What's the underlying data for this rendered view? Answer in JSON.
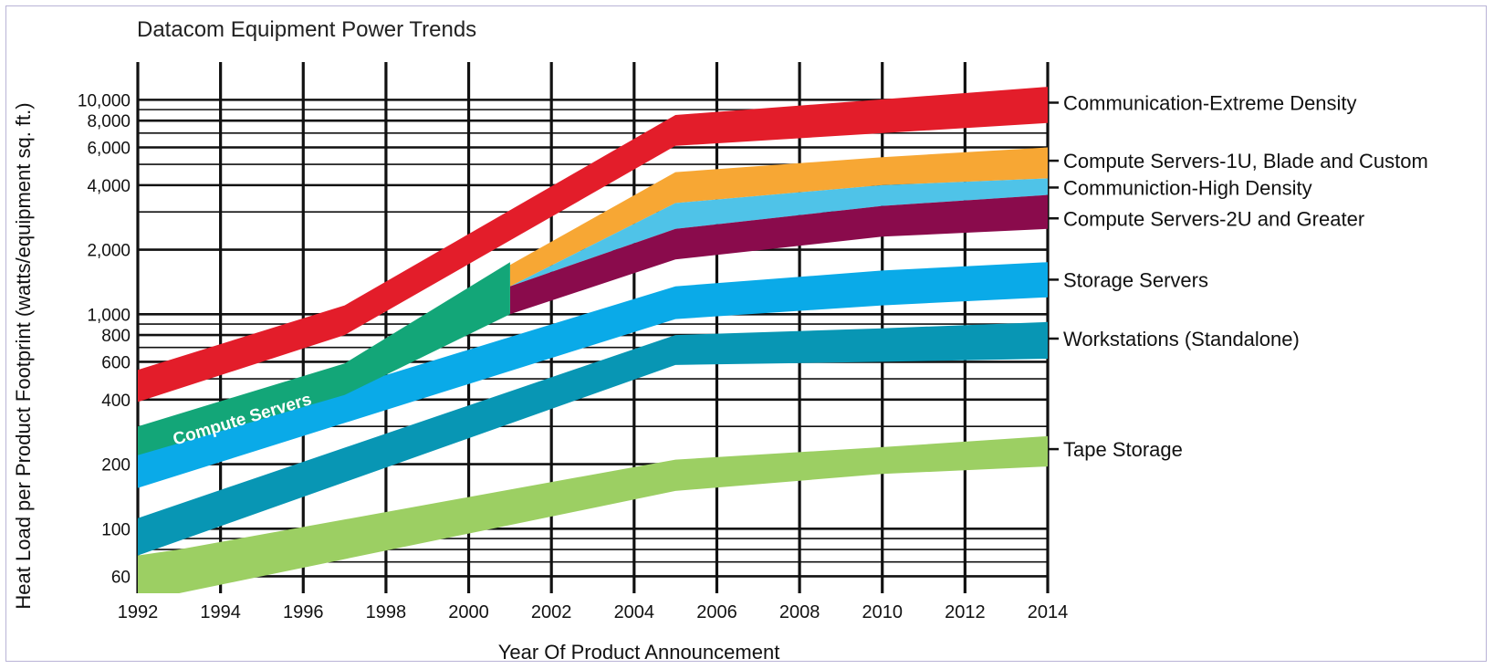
{
  "chart_data": {
    "type": "area",
    "title": "Datacom Equipment Power Trends",
    "xlabel": "Year Of Product Announcement",
    "ylabel": "Heat Load per Product Footprint (watts/equipment sq. ft.)",
    "xlim": [
      1992,
      2014
    ],
    "ylim": [
      50,
      15000
    ],
    "yscale": "log",
    "grid": true,
    "x_ticks": [
      1992,
      1994,
      1996,
      1998,
      2000,
      2002,
      2004,
      2006,
      2008,
      2010,
      2012,
      2014
    ],
    "y_ticks": [
      60,
      100,
      200,
      400,
      600,
      800,
      1000,
      2000,
      4000,
      6000,
      8000,
      10000
    ],
    "y_tick_labels": [
      "60",
      "100",
      "200",
      "400",
      "600",
      "800",
      "1,000",
      "2,000",
      "4,000",
      "6,000",
      "8,000",
      "10,000"
    ],
    "legend_position": "right",
    "series": [
      {
        "name": "Communication-Extreme Density",
        "color": "#e31d2a",
        "x": [
          1992,
          1997,
          2005,
          2014
        ],
        "upper": [
          550,
          1100,
          8500,
          11500
        ],
        "lower": [
          390,
          800,
          6100,
          7800
        ]
      },
      {
        "name": "Compute Servers-1U, Blade and Custom",
        "color": "#f7a734",
        "x": [
          2001,
          2005,
          2010,
          2014
        ],
        "upper": [
          1700,
          4600,
          5400,
          6000
        ],
        "lower": [
          1350,
          3300,
          4000,
          4300
        ]
      },
      {
        "name": "Communiction-High Density",
        "color": "#4fc3e8",
        "x": [
          2001,
          2005,
          2010,
          2014
        ],
        "upper": [
          1350,
          3300,
          4000,
          4300
        ],
        "lower": [
          1350,
          2500,
          3200,
          3600
        ]
      },
      {
        "name": "Compute Servers-2U and Greater",
        "color": "#8a0b4c",
        "x": [
          2001,
          2005,
          2010,
          2014
        ],
        "upper": [
          1350,
          2500,
          3200,
          3600
        ],
        "lower": [
          1000,
          1800,
          2300,
          2500
        ]
      },
      {
        "name": "Storage Servers",
        "color": "#0aaae8",
        "x": [
          1992,
          2005,
          2010,
          2014
        ],
        "upper": [
          230,
          1350,
          1600,
          1750
        ],
        "lower": [
          155,
          950,
          1100,
          1200
        ]
      },
      {
        "name": "Workstations (Standalone)",
        "color": "#0896b4",
        "x": [
          1992,
          2005,
          2010,
          2014
        ],
        "upper": [
          112,
          800,
          860,
          920
        ],
        "lower": [
          75,
          580,
          600,
          620
        ]
      },
      {
        "name": "Tape Storage",
        "color": "#9ccf63",
        "x": [
          1992,
          1993,
          2005,
          2010,
          2014
        ],
        "upper": [
          75,
          80,
          210,
          240,
          270
        ],
        "lower": [
          50,
          50,
          150,
          180,
          195
        ]
      },
      {
        "name": "Compute Servers",
        "color": "#13a678",
        "x": [
          1992,
          1997,
          2001
        ],
        "upper": [
          300,
          590,
          1750
        ],
        "lower": [
          220,
          420,
          1000
        ]
      }
    ]
  }
}
